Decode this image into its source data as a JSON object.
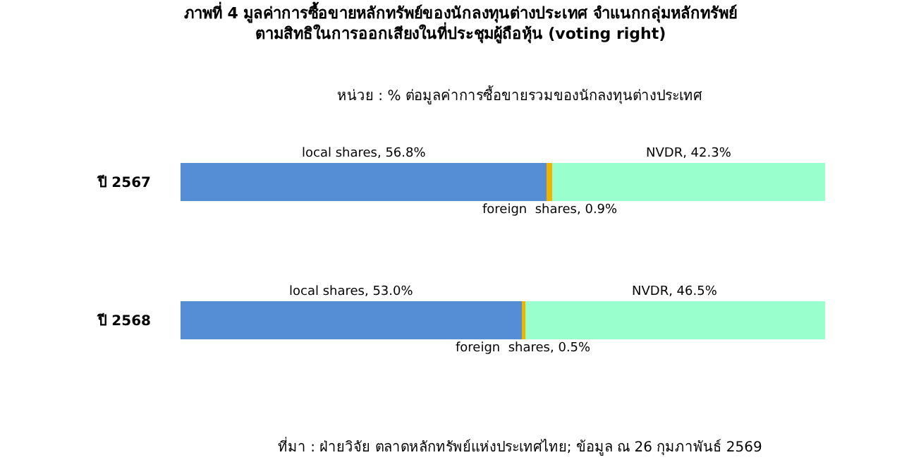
{
  "chart_data": {
    "type": "bar",
    "orientation": "horizontal",
    "stacked": true,
    "title": "ภาพที่ 4 มูลค่าการซื้อขายหลักทรัพย์ของนักลงทุนต่างประเทศ จำแนกกลุ่มหลักทรัพย์\nตามสิทธิในการออกเสียงในที่ประชุมผู้ถือหุ้น (voting right)",
    "subtitle": "หน่วย : % ต่อมูลค่าการซื้อขายรวมของนักลงทุนต่างประเทศ",
    "categories": [
      "ปี 2567",
      "ปี 2568"
    ],
    "series": [
      {
        "color": "#558ed5",
        "values": [
          56.8,
          53.0
        ],
        "value_labels": [
          "local shares, 56.8%",
          "local shares, 53.0%"
        ]
      },
      {
        "color": "#f0b400",
        "values": [
          0.9,
          0.5
        ],
        "value_labels": [
          "foreign  shares, 0.9%",
          "foreign  shares, 0.5%"
        ]
      },
      {
        "color": "#99ffcc",
        "values": [
          42.3,
          46.5
        ],
        "value_labels": [
          "NVDR, 42.3%",
          "NVDR, 46.5%"
        ]
      }
    ],
    "grid": false,
    "tick_labels": "y",
    "annotations": [
      "ที่มา : ฝ่ายวิจัย ตลาดหลักทรัพย์แห่งประเทศไทย; ข้อมูล ณ 26 กุมภาพันธ์ 2569"
    ]
  }
}
